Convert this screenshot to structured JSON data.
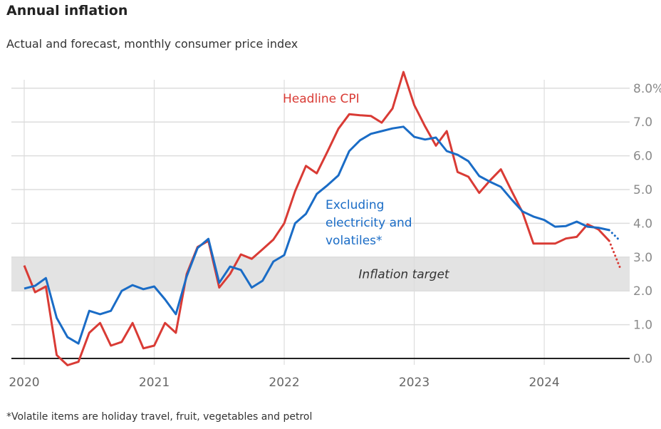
{
  "title": "Annual inflation",
  "subtitle": "Actual and forecast, monthly consumer price index",
  "footnote": "*Volatile items are holiday travel, fruit, vegetables and petrol",
  "colors": {
    "headline": "#d93b35",
    "core": "#1a6cc6",
    "target_band": "#e3e3e3",
    "grid": "#dddddd",
    "axis": "#222222"
  },
  "chart_data": {
    "type": "line",
    "title": "Annual inflation",
    "subtitle": "Actual and forecast, monthly consumer price index",
    "xlabel": "",
    "ylabel": "",
    "x_start": "2020-01",
    "x_step": "month",
    "x_ticks": [
      "2020",
      "2021",
      "2022",
      "2023",
      "2024"
    ],
    "y_ticks": [
      "0.0",
      "1.0",
      "2.0",
      "3.0",
      "4.0",
      "5.0",
      "6.0",
      "7.0",
      "8.0%"
    ],
    "ylim": [
      0,
      8
    ],
    "grid": true,
    "band": {
      "label": "Inflation target",
      "from": 2.0,
      "to": 3.0
    },
    "series": [
      {
        "name": "Headline CPI",
        "label": "Headline CPI",
        "values": [
          2.75,
          1.96,
          2.13,
          0.1,
          -0.2,
          -0.1,
          0.76,
          1.05,
          0.38,
          0.49,
          1.05,
          0.3,
          0.38,
          1.05,
          0.76,
          2.5,
          3.3,
          3.48,
          2.1,
          2.5,
          3.08,
          2.95,
          3.23,
          3.52,
          4.0,
          4.95,
          5.7,
          5.48,
          6.13,
          6.8,
          7.23,
          7.2,
          7.18,
          6.98,
          7.4,
          8.48,
          7.5,
          6.87,
          6.3,
          6.73,
          5.52,
          5.38,
          4.9,
          5.27,
          5.6,
          4.95,
          4.32,
          3.4,
          3.4,
          3.4,
          3.55,
          3.6,
          3.97,
          3.82,
          3.48
        ],
        "forecast": [
          3.48,
          2.68
        ]
      },
      {
        "name": "Excluding electricity and volatiles*",
        "label_lines": [
          "Excluding",
          "electricity and",
          "volatiles*"
        ],
        "values": [
          2.07,
          2.15,
          2.38,
          1.2,
          0.63,
          0.44,
          1.41,
          1.31,
          1.41,
          2.0,
          2.17,
          2.05,
          2.13,
          1.75,
          1.31,
          2.43,
          3.27,
          3.54,
          2.24,
          2.72,
          2.62,
          2.1,
          2.3,
          2.87,
          3.06,
          4.0,
          4.28,
          4.87,
          5.13,
          5.42,
          6.14,
          6.46,
          6.65,
          6.73,
          6.81,
          6.86,
          6.56,
          6.48,
          6.54,
          6.14,
          6.03,
          5.84,
          5.4,
          5.23,
          5.08,
          4.7,
          4.35,
          4.2,
          4.1,
          3.9,
          3.92,
          4.05,
          3.9,
          3.87,
          3.8
        ],
        "forecast": [
          3.8,
          3.48
        ]
      }
    ]
  }
}
